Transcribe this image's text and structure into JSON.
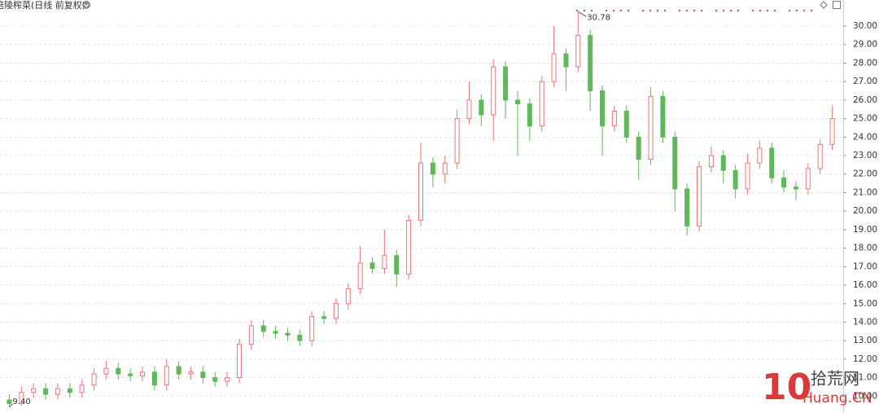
{
  "chart_data": {
    "type": "candlestick",
    "title": "涪陵榨菜(日线 前复权)",
    "open": [
      9.8,
      9.6,
      10.2,
      10.4,
      10.1,
      10.4,
      10.2,
      10.6,
      11.2,
      11.5,
      11.2,
      11.1,
      11.3,
      10.6,
      11.6,
      11.2,
      11.3,
      11.0,
      10.8,
      11.0,
      12.8,
      13.8,
      13.5,
      13.4,
      13.3,
      13.0,
      14.3,
      14.2,
      15.0,
      15.8,
      17.2,
      16.9,
      17.6,
      16.6,
      19.5,
      22.6,
      22.0,
      22.6,
      25.0,
      26.0,
      25.2,
      27.8,
      26.0,
      25.8,
      24.6,
      27.0,
      28.5,
      27.8,
      29.5,
      26.5,
      24.6,
      25.4,
      24.0,
      22.8,
      26.2,
      24.0,
      21.2,
      19.2,
      22.4,
      23.0,
      22.2,
      21.2,
      22.6,
      23.4,
      21.8,
      21.3,
      21.2,
      22.3,
      23.6
    ],
    "high": [
      10.1,
      10.5,
      10.7,
      10.7,
      10.7,
      10.7,
      10.9,
      11.5,
      11.9,
      11.8,
      11.5,
      11.6,
      11.6,
      12.0,
      11.9,
      11.6,
      11.6,
      11.3,
      11.3,
      13.1,
      14.1,
      14.1,
      13.8,
      13.7,
      13.6,
      14.6,
      14.6,
      15.3,
      16.1,
      18.1,
      17.5,
      19.0,
      17.9,
      19.8,
      23.7,
      22.9,
      23.0,
      25.5,
      27.0,
      26.3,
      28.2,
      28.1,
      26.5,
      26.1,
      27.3,
      30.0,
      28.8,
      30.78,
      29.8,
      26.8,
      25.7,
      25.7,
      24.3,
      26.7,
      26.5,
      24.3,
      21.5,
      22.7,
      23.5,
      23.3,
      22.5,
      23.1,
      23.8,
      23.7,
      22.2,
      21.6,
      22.6,
      23.9,
      25.7
    ],
    "low": [
      9.4,
      9.5,
      9.9,
      9.8,
      9.8,
      9.9,
      9.9,
      10.3,
      10.9,
      10.9,
      10.8,
      10.8,
      10.3,
      10.3,
      10.9,
      10.9,
      10.7,
      10.5,
      10.5,
      10.7,
      12.5,
      13.2,
      13.1,
      13.0,
      12.7,
      12.7,
      13.9,
      13.9,
      14.7,
      15.5,
      16.6,
      16.6,
      15.9,
      16.3,
      19.2,
      21.3,
      21.5,
      22.3,
      24.7,
      24.6,
      23.8,
      25.0,
      23.0,
      23.8,
      24.3,
      26.7,
      26.5,
      27.5,
      25.4,
      23.0,
      24.3,
      23.7,
      21.7,
      22.5,
      23.7,
      20.0,
      18.7,
      18.9,
      22.1,
      21.5,
      20.7,
      20.9,
      22.3,
      21.5,
      21.0,
      20.6,
      20.9,
      22.0,
      23.3
    ],
    "close": [
      9.6,
      10.2,
      10.4,
      10.1,
      10.4,
      10.2,
      10.6,
      11.2,
      11.5,
      11.2,
      11.1,
      11.3,
      10.6,
      11.6,
      11.2,
      11.3,
      11.0,
      10.8,
      11.0,
      12.8,
      13.8,
      13.5,
      13.4,
      13.3,
      13.0,
      14.3,
      14.2,
      15.0,
      15.8,
      17.2,
      16.9,
      17.6,
      16.6,
      19.5,
      22.6,
      22.0,
      22.6,
      25.0,
      26.0,
      25.2,
      27.8,
      26.0,
      25.8,
      24.6,
      27.0,
      28.5,
      27.8,
      29.5,
      26.5,
      24.6,
      25.4,
      24.0,
      22.8,
      26.2,
      24.0,
      21.2,
      19.2,
      22.4,
      23.0,
      22.2,
      21.2,
      22.6,
      23.4,
      21.8,
      21.3,
      21.2,
      22.3,
      23.6,
      25.0
    ],
    "up_color": "#ec7676",
    "down_color": "#5fb85a",
    "max_label": "30.78",
    "min_label": "9.40",
    "ylim": [
      9.09,
      31.41
    ],
    "yticks": [
      {
        "value": 10,
        "label": "10.00"
      },
      {
        "value": 11,
        "label": "11.00"
      },
      {
        "value": 12,
        "label": "12.00"
      },
      {
        "value": 13,
        "label": "13.00"
      },
      {
        "value": 14,
        "label": "14.00"
      },
      {
        "value": 15,
        "label": "15.00"
      },
      {
        "value": 16,
        "label": "16.00"
      },
      {
        "value": 17,
        "label": "17.00"
      },
      {
        "value": 18,
        "label": "18.00"
      },
      {
        "value": 19,
        "label": "19.00"
      },
      {
        "value": 20,
        "label": "20.00"
      },
      {
        "value": 21,
        "label": "21.00"
      },
      {
        "value": 22,
        "label": "22.00"
      },
      {
        "value": 23,
        "label": "23.00"
      },
      {
        "value": 24,
        "label": "24.00"
      },
      {
        "value": 25,
        "label": "25.00"
      },
      {
        "value": 26,
        "label": "26.00"
      },
      {
        "value": 27,
        "label": "27.00"
      },
      {
        "value": 28,
        "label": "28.00"
      },
      {
        "value": 29,
        "label": "29.00"
      },
      {
        "value": 30,
        "label": "30.00"
      }
    ],
    "grid": true
  },
  "watermark": {
    "logo": "10",
    "name": "拾荒网",
    "site": "Huang.CN"
  }
}
